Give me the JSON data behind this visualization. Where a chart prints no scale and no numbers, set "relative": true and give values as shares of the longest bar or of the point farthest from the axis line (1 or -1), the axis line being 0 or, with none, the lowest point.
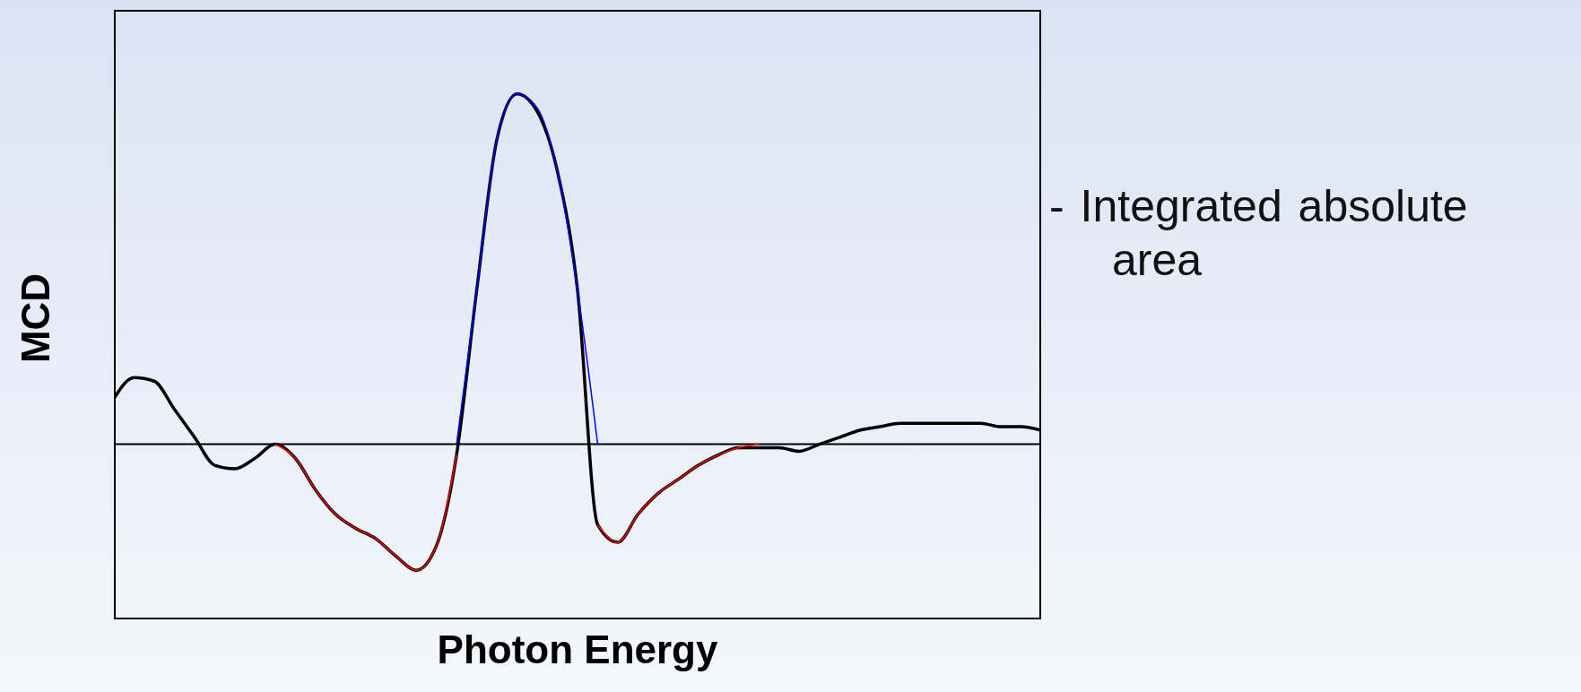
{
  "chart_data": {
    "type": "line",
    "relative": true,
    "xlabel": "Photon Energy",
    "ylabel": "MCD",
    "annotations": [
      "- Integrated absolute area"
    ],
    "categories": [
      null,
      null,
      null,
      null,
      null,
      null,
      null,
      null,
      null,
      null,
      null,
      null,
      null,
      null,
      null,
      null,
      null,
      null,
      null,
      null,
      null,
      null,
      null,
      null,
      null,
      null,
      null,
      null,
      null,
      null,
      null,
      null,
      null,
      null,
      null,
      null,
      null,
      null,
      null,
      null,
      null,
      null,
      null,
      null,
      null,
      null,
      null
    ],
    "series": [
      {
        "color": "#0000ff",
        "values": [
          null,
          null,
          null,
          null,
          null,
          null,
          null,
          null,
          null,
          null,
          null,
          null,
          null,
          null,
          null,
          null,
          null,
          0,
          0.44,
          0.87,
          1.0,
          0.96,
          0.78,
          0.44,
          0,
          null,
          null,
          null,
          null,
          null,
          null,
          null,
          null,
          null,
          null,
          null,
          null,
          null,
          null,
          null,
          null,
          null,
          null,
          null,
          null,
          null,
          null
        ]
      },
      {
        "color": "#ff0000",
        "values": [
          null,
          null,
          null,
          null,
          null,
          null,
          null,
          null,
          0,
          -0.04,
          -0.13,
          -0.2,
          -0.24,
          -0.27,
          -0.32,
          -0.36,
          -0.29,
          -0.03,
          null,
          null,
          null,
          null,
          null,
          null,
          -0.23,
          -0.28,
          -0.2,
          -0.14,
          -0.1,
          -0.06,
          -0.03,
          -0.01,
          0,
          null,
          null,
          null,
          null,
          null,
          null,
          null,
          null,
          null,
          null,
          null,
          null,
          null,
          null
        ]
      },
      {
        "color": "#000000",
        "values": [
          0.13,
          0.19,
          0.18,
          0.1,
          0.02,
          -0.06,
          -0.07,
          -0.04,
          0,
          -0.04,
          -0.13,
          -0.2,
          -0.24,
          -0.27,
          -0.32,
          -0.36,
          -0.29,
          -0.03,
          0.44,
          0.87,
          1.0,
          0.95,
          0.78,
          0.44,
          -0.23,
          -0.28,
          -0.2,
          -0.14,
          -0.1,
          -0.06,
          -0.03,
          -0.01,
          -0.01,
          -0.01,
          -0.02,
          0,
          0.02,
          0.04,
          0.05,
          0.06,
          0.06,
          0.06,
          0.06,
          0.06,
          0.05,
          0.05,
          0.04
        ]
      }
    ],
    "ref_lines": [
      {
        "axis": "y",
        "value": 0,
        "color": "#000000"
      }
    ]
  }
}
